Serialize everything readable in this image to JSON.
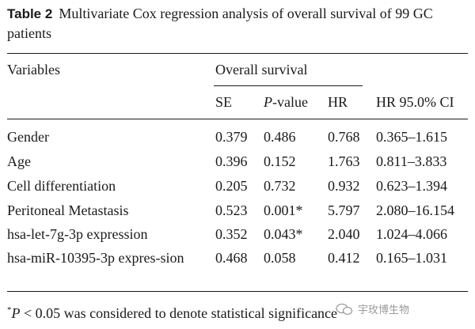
{
  "caption": {
    "label": "Table 2",
    "text": "Multivariate Cox regression analysis of overall survival of 99 GC patients"
  },
  "headers": {
    "variables": "Variables",
    "group": "Overall survival",
    "se": "SE",
    "p_prefix": "P",
    "p_suffix": "-value",
    "hr": "HR",
    "ci": "HR 95.0% CI"
  },
  "rows": [
    {
      "variable": "Gender",
      "se": "0.379",
      "p": "0.486",
      "hr": "0.768",
      "ci": "0.365–1.615"
    },
    {
      "variable": "Age",
      "se": "0.396",
      "p": "0.152",
      "hr": "1.763",
      "ci": "0.811–3.833"
    },
    {
      "variable": "Cell differentiation",
      "se": "0.205",
      "p": "0.732",
      "hr": "0.932",
      "ci": "0.623–1.394"
    },
    {
      "variable": "Peritoneal Metastasis",
      "se": "0.523",
      "p": "0.001*",
      "hr": "5.797",
      "ci": "2.080–16.154"
    },
    {
      "variable": "hsa-let-7g-3p expression",
      "se": "0.352",
      "p": "0.043*",
      "hr": "2.040",
      "ci": "1.024–4.066"
    },
    {
      "variable": "hsa-miR-10395-3p expres-sion",
      "se": "0.468",
      "p": "0.058",
      "hr": "0.412",
      "ci": "0.165–1.031"
    }
  ],
  "footnote": {
    "mark": "*",
    "p": "P",
    "text": " < 0.05 was considered to denote statistical significance"
  },
  "watermark": {
    "text": "宇玫博生物"
  }
}
